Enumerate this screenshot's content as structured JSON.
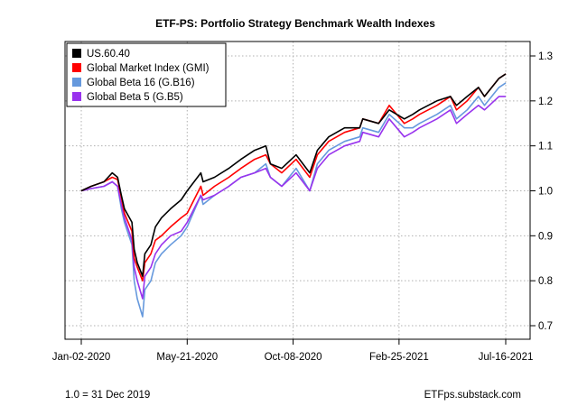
{
  "chart_data": {
    "type": "line",
    "title": "ETF-PS: Portfolio Strategy Benchmark Wealth Indexes",
    "xlabel": "",
    "ylabel": "",
    "x_tick_labels": [
      "Jan-02-2020",
      "May-21-2020",
      "Oct-08-2020",
      "Feb-25-2021",
      "Jul-16-2021"
    ],
    "x_ticks_dates": [
      "2020-01-02",
      "2020-05-21",
      "2020-10-08",
      "2021-02-25",
      "2021-07-16"
    ],
    "ylim": [
      0.7,
      1.3
    ],
    "y_ticks": [
      0.7,
      0.8,
      0.9,
      1.0,
      1.1,
      1.2,
      1.3
    ],
    "y_tick_labels": [
      "0.7",
      "0.8",
      "0.9",
      "1.0",
      "1.1",
      "1.2",
      "1.3"
    ],
    "grid": true,
    "legend_position": "top-left",
    "x": [
      "2020-01-02",
      "2020-01-15",
      "2020-02-01",
      "2020-02-12",
      "2020-02-19",
      "2020-02-24",
      "2020-02-28",
      "2020-03-09",
      "2020-03-12",
      "2020-03-16",
      "2020-03-23",
      "2020-03-26",
      "2020-04-03",
      "2020-04-09",
      "2020-04-17",
      "2020-04-29",
      "2020-05-13",
      "2020-05-21",
      "2020-06-08",
      "2020-06-11",
      "2020-06-26",
      "2020-07-15",
      "2020-07-31",
      "2020-08-18",
      "2020-09-02",
      "2020-09-08",
      "2020-09-23",
      "2020-10-12",
      "2020-10-30",
      "2020-11-09",
      "2020-11-24",
      "2020-12-15",
      "2021-01-04",
      "2021-01-08",
      "2021-01-29",
      "2021-02-12",
      "2021-03-04",
      "2021-03-15",
      "2021-03-24",
      "2021-04-16",
      "2021-05-04",
      "2021-05-12",
      "2021-05-26",
      "2021-06-10",
      "2021-06-18",
      "2021-07-07",
      "2021-07-16"
    ],
    "series": [
      {
        "name": "US.60.40",
        "color": "#000000",
        "values": [
          1.0,
          1.01,
          1.02,
          1.04,
          1.03,
          0.99,
          0.96,
          0.93,
          0.87,
          0.84,
          0.81,
          0.86,
          0.88,
          0.92,
          0.94,
          0.96,
          0.98,
          1.0,
          1.04,
          1.02,
          1.03,
          1.05,
          1.07,
          1.09,
          1.1,
          1.06,
          1.05,
          1.08,
          1.04,
          1.09,
          1.12,
          1.14,
          1.14,
          1.16,
          1.15,
          1.18,
          1.16,
          1.17,
          1.18,
          1.2,
          1.21,
          1.19,
          1.21,
          1.23,
          1.21,
          1.25,
          1.26
        ]
      },
      {
        "name": "Global Market Index (GMI)",
        "color": "#ff0000",
        "values": [
          1.0,
          1.01,
          1.02,
          1.03,
          1.025,
          0.985,
          0.95,
          0.91,
          0.85,
          0.83,
          0.8,
          0.84,
          0.86,
          0.89,
          0.9,
          0.92,
          0.94,
          0.95,
          1.01,
          0.99,
          1.01,
          1.03,
          1.05,
          1.07,
          1.08,
          1.06,
          1.04,
          1.07,
          1.03,
          1.08,
          1.11,
          1.13,
          1.14,
          1.16,
          1.15,
          1.19,
          1.15,
          1.16,
          1.17,
          1.19,
          1.21,
          1.18,
          1.2,
          1.23,
          1.21,
          1.25,
          1.26
        ]
      },
      {
        "name": "Global Beta 16 (G.B16)",
        "color": "#6699dd",
        "values": [
          1.0,
          1.005,
          1.01,
          1.02,
          1.01,
          0.96,
          0.93,
          0.88,
          0.8,
          0.76,
          0.72,
          0.78,
          0.8,
          0.84,
          0.86,
          0.88,
          0.9,
          0.92,
          0.99,
          0.97,
          0.99,
          1.01,
          1.03,
          1.04,
          1.06,
          1.03,
          1.01,
          1.05,
          1.0,
          1.06,
          1.09,
          1.11,
          1.12,
          1.14,
          1.13,
          1.17,
          1.14,
          1.14,
          1.15,
          1.17,
          1.19,
          1.16,
          1.18,
          1.21,
          1.19,
          1.23,
          1.24
        ]
      },
      {
        "name": "Global Beta 5 (G.B5)",
        "color": "#9933ee",
        "values": [
          1.0,
          1.005,
          1.01,
          1.02,
          1.01,
          0.97,
          0.94,
          0.89,
          0.83,
          0.8,
          0.76,
          0.81,
          0.83,
          0.86,
          0.88,
          0.9,
          0.91,
          0.93,
          0.99,
          0.98,
          0.99,
          1.01,
          1.03,
          1.04,
          1.05,
          1.03,
          1.01,
          1.04,
          1.0,
          1.05,
          1.08,
          1.1,
          1.11,
          1.13,
          1.12,
          1.16,
          1.12,
          1.13,
          1.14,
          1.16,
          1.18,
          1.15,
          1.17,
          1.19,
          1.18,
          1.21,
          1.21
        ]
      }
    ],
    "footer_left": "1.0 = 31 Dec 2019",
    "footer_right": "ETFps.substack.com"
  }
}
